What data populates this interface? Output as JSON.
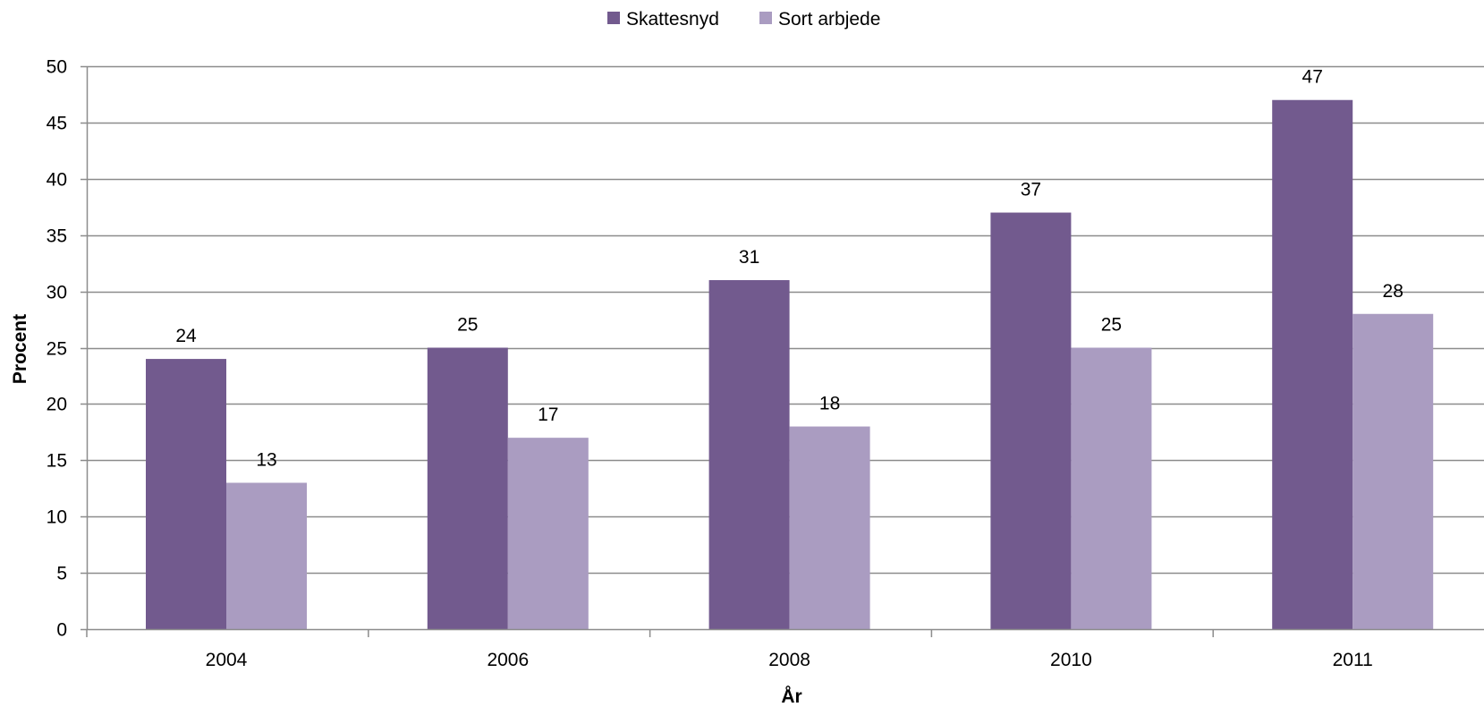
{
  "chart_data": {
    "type": "bar",
    "categories": [
      "2004",
      "2006",
      "2008",
      "2010",
      "2011"
    ],
    "series": [
      {
        "name": "Skattesnyd",
        "color": "#725a8e",
        "values": [
          24,
          25,
          31,
          37,
          47
        ]
      },
      {
        "name": "Sort arbjede",
        "color": "#aa9cc1",
        "values": [
          13,
          17,
          18,
          25,
          28
        ]
      }
    ],
    "title": "",
    "xlabel": "År",
    "ylabel": "Procent",
    "ylim": [
      0,
      50
    ],
    "yticks": [
      0,
      5,
      10,
      15,
      20,
      25,
      30,
      35,
      40,
      45,
      50
    ],
    "grid": true,
    "data_labels": true,
    "legend_position": "top-center",
    "colors": {
      "gridline": "#8c8c8c",
      "axis": "#8c8c8c",
      "text": "#000000"
    }
  }
}
